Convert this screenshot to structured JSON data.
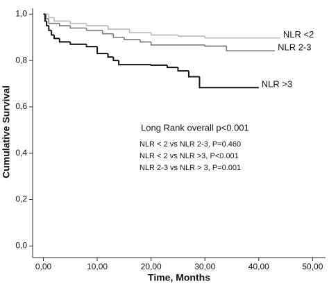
{
  "chart_data": {
    "type": "step",
    "x_label": "Time, Months",
    "y_label": "Cumulative Survival",
    "annotations": [
      "Long Rank overall p<0.001",
      "NLR < 2 vs NLR 2-3, P=0.460",
      "NLR < 2 vs NLR >3, P<0.001",
      "NLR 2-3 vs NLR > 3, P=0.001"
    ],
    "xlim": [
      -2,
      52.4
    ],
    "ylim": [
      -0.05,
      1.025
    ],
    "xticks": [
      {
        "value": 0,
        "label": "0,00"
      },
      {
        "value": 10,
        "label": "10,00"
      },
      {
        "value": 20,
        "label": "20,00"
      },
      {
        "value": 30,
        "label": "30,00"
      },
      {
        "value": 40,
        "label": "40,00"
      },
      {
        "value": 50,
        "label": "50,00"
      }
    ],
    "yticks": [
      {
        "value": 0,
        "label": "0,0"
      },
      {
        "value": 0.2,
        "label": "0,2"
      },
      {
        "value": 0.4,
        "label": "0,4"
      },
      {
        "value": 0.6,
        "label": "0,6"
      },
      {
        "value": 0.8,
        "label": "0,8"
      },
      {
        "value": 1.0,
        "label": "1,0"
      }
    ],
    "series": [
      {
        "name": "NLR <2",
        "color": "#b8b8b8",
        "x": [
          0,
          1,
          2,
          5,
          8,
          12,
          16,
          20,
          25,
          30,
          44
        ],
        "values": [
          1.0,
          0.985,
          0.97,
          0.96,
          0.95,
          0.935,
          0.92,
          0.91,
          0.905,
          0.897,
          0.897
        ]
      },
      {
        "name": "NLR 2-3",
        "color": "#777777",
        "x": [
          0,
          0.5,
          1,
          3,
          5,
          8,
          11,
          13,
          15,
          18,
          20,
          30,
          34,
          43
        ],
        "values": [
          1.0,
          0.98,
          0.96,
          0.95,
          0.94,
          0.93,
          0.915,
          0.9,
          0.89,
          0.88,
          0.867,
          0.862,
          0.842,
          0.842
        ]
      },
      {
        "name": "NLR >3",
        "color": "#111111",
        "x": [
          0,
          0.3,
          0.6,
          1,
          1.5,
          2,
          3,
          5,
          8,
          10,
          12,
          13,
          14,
          20,
          23,
          25,
          27,
          29,
          40
        ],
        "values": [
          1.0,
          0.97,
          0.95,
          0.93,
          0.91,
          0.895,
          0.88,
          0.87,
          0.86,
          0.83,
          0.815,
          0.8,
          0.782,
          0.78,
          0.77,
          0.755,
          0.73,
          0.683,
          0.683
        ]
      }
    ]
  }
}
